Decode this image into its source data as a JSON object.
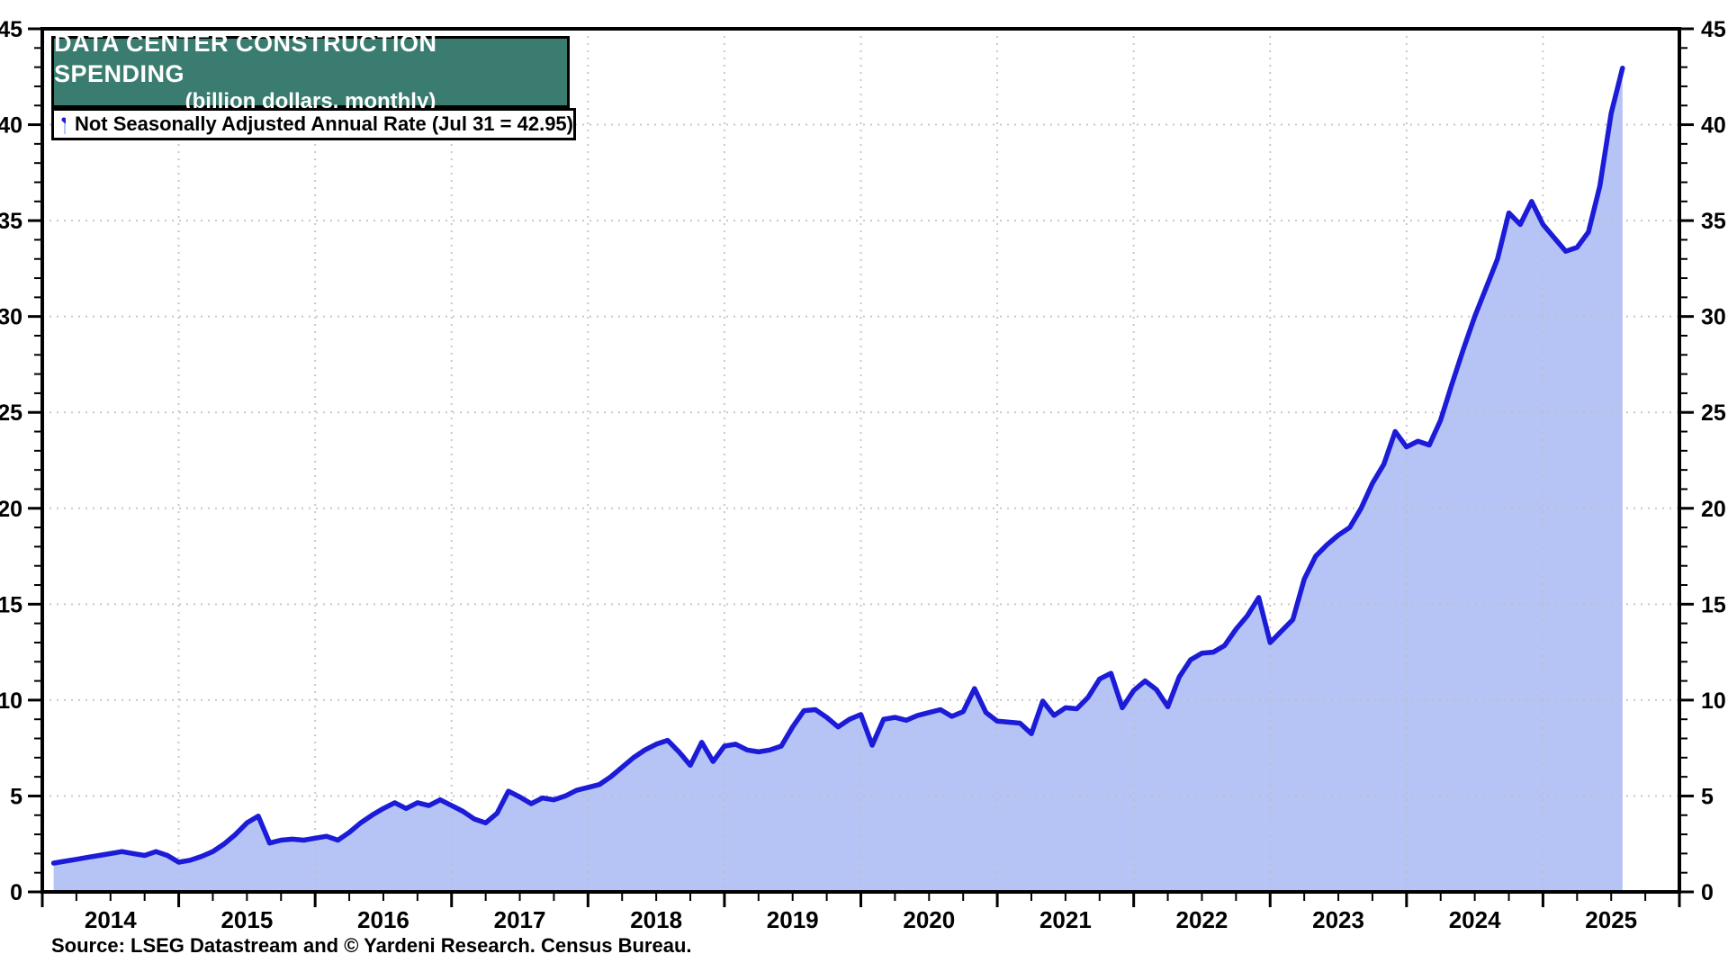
{
  "title": {
    "line1": "DATA CENTER CONSTRUCTION SPENDING",
    "line2": "(billion dollars, monthly)"
  },
  "legend": {
    "label": "Not Seasonally Adjusted Annual Rate (Jul 31 = 42.95)"
  },
  "source": {
    "text": "Source: LSEG Datastream and © Yardeni Research. Census Bureau."
  },
  "colors": {
    "title_bg": "#3A7D70",
    "title_text": "#ffffff",
    "line": "#1b1bd8",
    "fill": "#b5c3f5",
    "grid": "#bfbfbf",
    "frame": "#000000"
  },
  "chart_data": {
    "type": "area",
    "title": "DATA CENTER CONSTRUCTION SPENDING",
    "subtitle": "(billion dollars, monthly)",
    "series_name": "Not Seasonally Adjusted Annual Rate",
    "last_point_annotation": "Jul 31 = 42.95",
    "xlabel": "",
    "ylabel": "billion dollars",
    "ylim": [
      0,
      45
    ],
    "ytick_major": 5,
    "ytick_minor": 1,
    "x_axis_start_year": 2014,
    "x_axis_end_year": 2026,
    "xtick_minor_months": 3,
    "year_labels": [
      "2014",
      "2015",
      "2016",
      "2017",
      "2018",
      "2019",
      "2020",
      "2021",
      "2022",
      "2023",
      "2024",
      "2025"
    ],
    "grid": "dotted",
    "legend_position": "top-left",
    "first_month": "2014-01",
    "last_month": "2025-07",
    "monthly_values": [
      1.5,
      1.6,
      1.7,
      1.8,
      1.9,
      2.0,
      2.1,
      2.0,
      1.9,
      2.1,
      1.9,
      1.55,
      1.65,
      1.85,
      2.1,
      2.5,
      3.0,
      3.6,
      3.95,
      2.55,
      2.7,
      2.75,
      2.7,
      2.8,
      2.9,
      2.7,
      3.1,
      3.6,
      4.0,
      4.35,
      4.65,
      4.35,
      4.65,
      4.5,
      4.8,
      4.5,
      4.2,
      3.8,
      3.6,
      4.1,
      5.25,
      4.95,
      4.6,
      4.9,
      4.8,
      5.0,
      5.3,
      5.45,
      5.6,
      6.0,
      6.5,
      7.0,
      7.4,
      7.7,
      7.9,
      7.3,
      6.6,
      7.8,
      6.8,
      7.6,
      7.7,
      7.4,
      7.3,
      7.4,
      7.6,
      8.6,
      9.45,
      9.5,
      9.1,
      8.6,
      9.0,
      9.25,
      7.65,
      9.0,
      9.1,
      8.95,
      9.2,
      9.35,
      9.5,
      9.15,
      9.4,
      10.6,
      9.35,
      8.9,
      8.85,
      8.8,
      8.25,
      9.95,
      9.2,
      9.6,
      9.55,
      10.15,
      11.1,
      11.4,
      9.6,
      10.5,
      11.0,
      10.55,
      9.65,
      11.2,
      12.1,
      12.45,
      12.5,
      12.85,
      13.7,
      14.4,
      15.35,
      13.0,
      13.6,
      14.2,
      16.3,
      17.5,
      18.1,
      18.6,
      19.0,
      20.0,
      21.3,
      22.3,
      24.0,
      23.2,
      23.5,
      23.3,
      24.6,
      26.5,
      28.3,
      30.0,
      31.5,
      33.0,
      35.4,
      34.8,
      36.0,
      34.8,
      34.1,
      33.4,
      33.6,
      34.4,
      36.8,
      40.6,
      42.95
    ]
  }
}
